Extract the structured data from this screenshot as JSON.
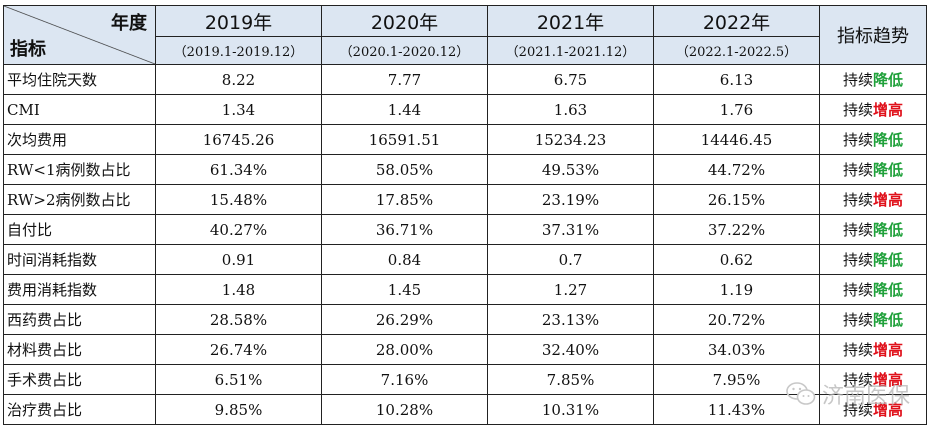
{
  "header": {
    "corner_top": "年度",
    "corner_bottom": "指标",
    "trend_header": "指标趋势",
    "years": [
      {
        "year": "2019年",
        "range": "（2019.1-2019.12）"
      },
      {
        "year": "2020年",
        "range": "（2020.1-2020.12）"
      },
      {
        "year": "2021年",
        "range": "（2021.1-2021.12）"
      },
      {
        "year": "2022年",
        "range": "（2022.1-2022.5）"
      }
    ]
  },
  "trend_prefix": "持续",
  "rows": [
    {
      "name": "平均住院天数",
      "values": [
        "8.22",
        "7.77",
        "6.75",
        "6.13"
      ],
      "trend": "降低",
      "direction": "down"
    },
    {
      "name": "CMI",
      "values": [
        "1.34",
        "1.44",
        "1.63",
        "1.76"
      ],
      "trend": "增高",
      "direction": "up"
    },
    {
      "name": "次均费用",
      "values": [
        "16745.26",
        "16591.51",
        "15234.23",
        "14446.45"
      ],
      "trend": "降低",
      "direction": "down"
    },
    {
      "name": "RW<1病例数占比",
      "values": [
        "61.34%",
        "58.05%",
        "49.53%",
        "44.72%"
      ],
      "trend": "降低",
      "direction": "down"
    },
    {
      "name": "RW>2病例数占比",
      "values": [
        "15.48%",
        "17.85%",
        "23.19%",
        "26.15%"
      ],
      "trend": "增高",
      "direction": "up"
    },
    {
      "name": "自付比",
      "values": [
        "40.27%",
        "36.71%",
        "37.31%",
        "37.22%"
      ],
      "trend": "降低",
      "direction": "down"
    },
    {
      "name": "时间消耗指数",
      "values": [
        "0.91",
        "0.84",
        "0.7",
        "0.62"
      ],
      "trend": "降低",
      "direction": "down"
    },
    {
      "name": "费用消耗指数",
      "values": [
        "1.48",
        "1.45",
        "1.27",
        "1.19"
      ],
      "trend": "降低",
      "direction": "down"
    },
    {
      "name": "西药费占比",
      "values": [
        "28.58%",
        "26.29%",
        "23.13%",
        "20.72%"
      ],
      "trend": "降低",
      "direction": "down"
    },
    {
      "name": "材料费占比",
      "values": [
        "26.74%",
        "28.00%",
        "32.40%",
        "34.03%"
      ],
      "trend": "增高",
      "direction": "up"
    },
    {
      "name": "手术费占比",
      "values": [
        "6.51%",
        "7.16%",
        "7.85%",
        "7.95%"
      ],
      "trend": "增高",
      "direction": "up"
    },
    {
      "name": "治疗费占比",
      "values": [
        "9.85%",
        "10.28%",
        "10.31%",
        "11.43%"
      ],
      "trend": "增高",
      "direction": "up"
    }
  ],
  "colors": {
    "down": "#1fa13a",
    "up": "#e0101a",
    "header_bg": "#dce6f2"
  },
  "watermark": {
    "icon": "wechat-icon",
    "text": "济南医保"
  }
}
